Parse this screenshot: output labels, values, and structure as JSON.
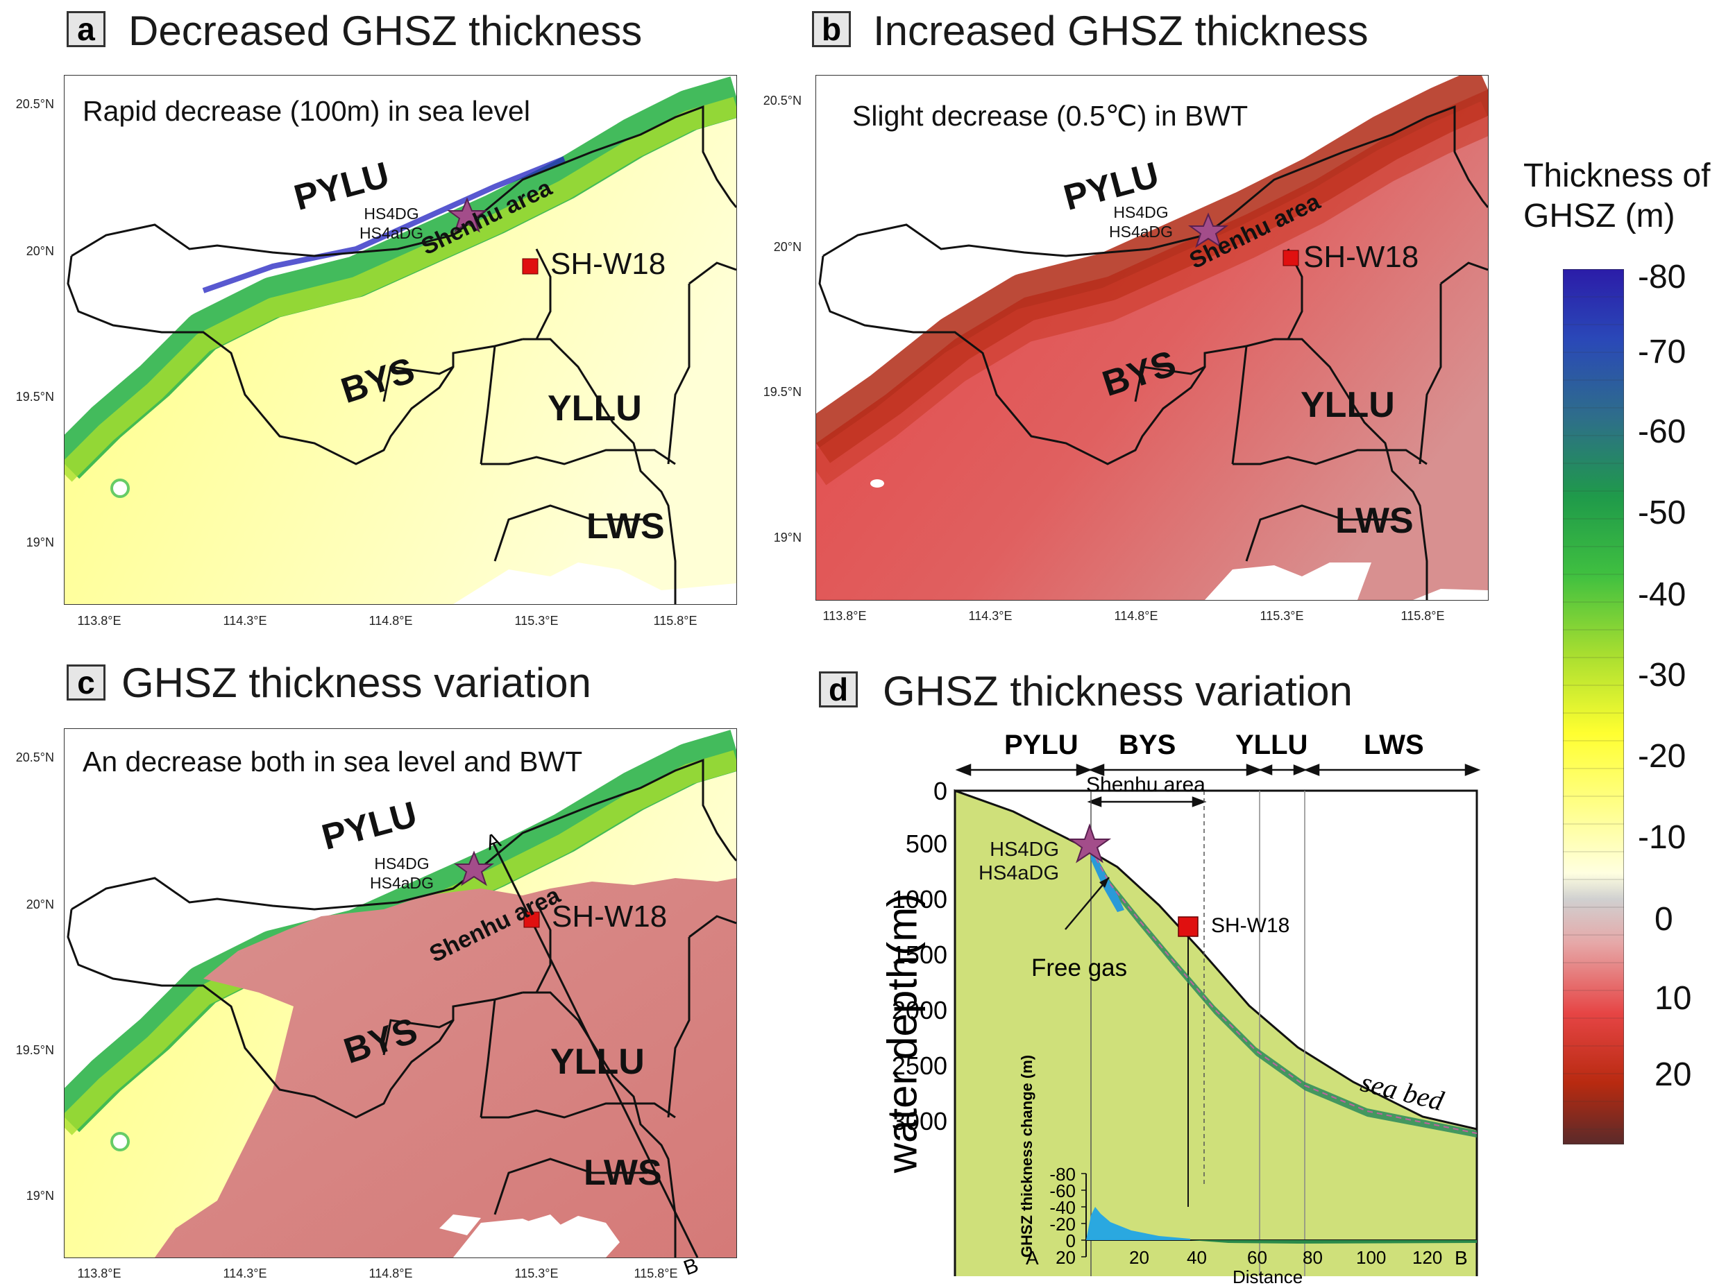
{
  "panels": {
    "a": {
      "letter": "a",
      "title": "Decreased GHSZ thickness",
      "subtitle": "Rapid decrease (100m) in sea level"
    },
    "b": {
      "letter": "b",
      "title": "Increased GHSZ thickness",
      "subtitle": "Slight decrease (0.5℃) in BWT"
    },
    "c": {
      "letter": "c",
      "title": "GHSZ thickness variation",
      "subtitle": "An decrease both in sea level and BWT"
    },
    "d": {
      "letter": "d",
      "title": "GHSZ thickness variation"
    }
  },
  "map_axes": {
    "lat_labels": [
      "20.5°N",
      "20°N",
      "19.5°N",
      "19°N"
    ],
    "lon_labels": [
      "113.8°E",
      "114.3°E",
      "114.8°E",
      "115.3°E",
      "115.8°E"
    ]
  },
  "regions": {
    "pylu": "PYLU",
    "bys": "BYS",
    "yllu": "YLLU",
    "lws": "LWS"
  },
  "sites": {
    "hs4dg": "HS4DG",
    "hs4adg": "HS4aDG",
    "shw18": "SH-W18",
    "shenhu": "Shenhu area",
    "point_a": "A",
    "point_b": "B"
  },
  "section": {
    "ylabel": "water depth(m)",
    "depth_ticks": [
      "0",
      "500",
      "1000",
      "1500",
      "2000",
      "2500",
      "3000"
    ],
    "zones": [
      "PYLU",
      "BYS",
      "YLLU",
      "LWS"
    ],
    "shenhu": "Shenhu area",
    "site1": "HS4DG",
    "site2": "HS4aDG",
    "shw18": "SH-W18",
    "free_gas": "Free gas",
    "seabed": "sea bed",
    "inset_ylabel": "GHSZ thickness change (m)",
    "inset_yticks": [
      "-80",
      "-60",
      "-40",
      "-20",
      "0",
      "20"
    ],
    "inset_xticks": [
      "20",
      "40",
      "60",
      "80",
      "100",
      "120"
    ],
    "inset_xlabel": "Distance",
    "a_end": "A",
    "b_end": "B"
  },
  "colorbar": {
    "title_line1": "Thickness of",
    "title_line2": "GHSZ (m)",
    "ticks": [
      "-80",
      "-70",
      "-60",
      "-50",
      "-40",
      "-30",
      "-20",
      "-10",
      "0",
      "10",
      "20"
    ]
  },
  "colors": {
    "blue": "#2020c0",
    "green": "#2fb44a",
    "yellow": "#ffff66",
    "pale": "#ffffd8",
    "red": "#e24a4a",
    "darkred": "#a52010",
    "pink": "#d88a86",
    "section_fill": "#cfe07a"
  }
}
